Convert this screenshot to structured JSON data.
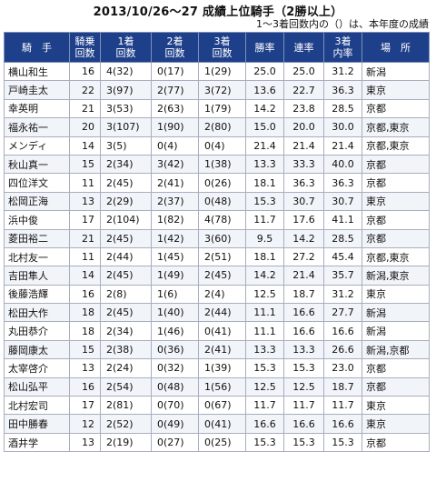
{
  "title": "2013/10/26～27 成績上位騎手（2勝以上）",
  "subtitle": "1～3着回数内の（）は、本年度の成績",
  "headers": [
    "騎　手",
    "騎乗\n回数",
    "1着\n回数",
    "2着\n回数",
    "3着\n回数",
    "勝率",
    "連率",
    "3着\n内率",
    "場　所"
  ],
  "rows": [
    [
      "横山和生",
      "16",
      "4(32)",
      "0(17)",
      "1(29)",
      "25.0",
      "25.0",
      "31.2",
      "新潟"
    ],
    [
      "戸崎圭太",
      "22",
      "3(97)",
      "2(77)",
      "3(72)",
      "13.6",
      "22.7",
      "36.3",
      "東京"
    ],
    [
      "幸英明",
      "21",
      "3(53)",
      "2(63)",
      "1(79)",
      "14.2",
      "23.8",
      "28.5",
      "京都"
    ],
    [
      "福永祐一",
      "20",
      "3(107)",
      "1(90)",
      "2(80)",
      "15.0",
      "20.0",
      "30.0",
      "京都,東京"
    ],
    [
      "メンディ",
      "14",
      "3(5)",
      "0(4)",
      "0(4)",
      "21.4",
      "21.4",
      "21.4",
      "京都,東京"
    ],
    [
      "秋山真一",
      "15",
      "2(34)",
      "3(42)",
      "1(38)",
      "13.3",
      "33.3",
      "40.0",
      "京都"
    ],
    [
      "四位洋文",
      "11",
      "2(45)",
      "2(41)",
      "0(26)",
      "18.1",
      "36.3",
      "36.3",
      "京都"
    ],
    [
      "松岡正海",
      "13",
      "2(29)",
      "2(37)",
      "0(48)",
      "15.3",
      "30.7",
      "30.7",
      "東京"
    ],
    [
      "浜中俊",
      "17",
      "2(104)",
      "1(82)",
      "4(78)",
      "11.7",
      "17.6",
      "41.1",
      "京都"
    ],
    [
      "菱田裕二",
      "21",
      "2(45)",
      "1(42)",
      "3(60)",
      "9.5",
      "14.2",
      "28.5",
      "京都"
    ],
    [
      "北村友一",
      "11",
      "2(44)",
      "1(45)",
      "2(51)",
      "18.1",
      "27.2",
      "45.4",
      "京都,東京"
    ],
    [
      "吉田隼人",
      "14",
      "2(45)",
      "1(49)",
      "2(45)",
      "14.2",
      "21.4",
      "35.7",
      "新潟,東京"
    ],
    [
      "後藤浩輝",
      "16",
      "2(8)",
      "1(6)",
      "2(4)",
      "12.5",
      "18.7",
      "31.2",
      "東京"
    ],
    [
      "松田大作",
      "18",
      "2(45)",
      "1(40)",
      "2(44)",
      "11.1",
      "16.6",
      "27.7",
      "新潟"
    ],
    [
      "丸田恭介",
      "18",
      "2(34)",
      "1(46)",
      "0(41)",
      "11.1",
      "16.6",
      "16.6",
      "新潟"
    ],
    [
      "藤岡康太",
      "15",
      "2(38)",
      "0(36)",
      "2(41)",
      "13.3",
      "13.3",
      "26.6",
      "新潟,京都"
    ],
    [
      "太宰啓介",
      "13",
      "2(24)",
      "0(32)",
      "1(39)",
      "15.3",
      "15.3",
      "23.0",
      "京都"
    ],
    [
      "松山弘平",
      "16",
      "2(54)",
      "0(48)",
      "1(56)",
      "12.5",
      "12.5",
      "18.7",
      "京都"
    ],
    [
      "北村宏司",
      "17",
      "2(81)",
      "0(70)",
      "0(67)",
      "11.7",
      "11.7",
      "11.7",
      "東京"
    ],
    [
      "田中勝春",
      "12",
      "2(52)",
      "0(49)",
      "0(41)",
      "16.6",
      "16.6",
      "16.6",
      "東京"
    ],
    [
      "酒井学",
      "13",
      "2(19)",
      "0(27)",
      "0(25)",
      "15.3",
      "15.3",
      "15.3",
      "京都"
    ]
  ]
}
